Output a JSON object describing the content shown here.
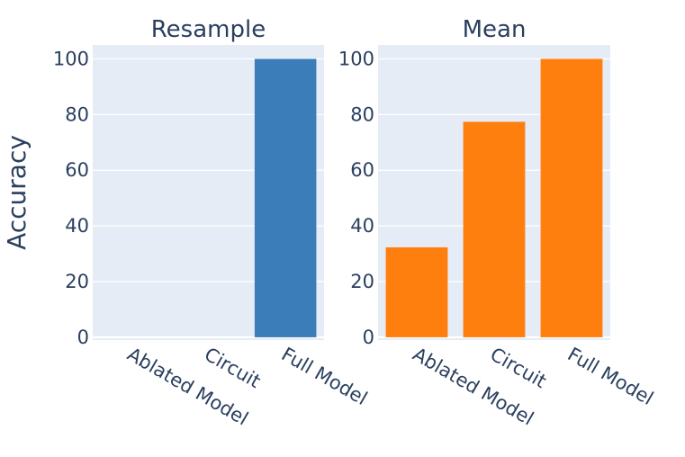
{
  "chart_data": [
    {
      "type": "bar",
      "title": "Resample",
      "categories": [
        "Ablated Model",
        "Circuit",
        "Full Model"
      ],
      "values": [
        0,
        0,
        100
      ],
      "ylabel": "Accuracy",
      "ylim": [
        -1,
        105
      ],
      "yticks": [
        0,
        20,
        40,
        60,
        80,
        100
      ],
      "color": "#3a7db8",
      "grid": true
    },
    {
      "type": "bar",
      "title": "Mean",
      "categories": [
        "Ablated Model",
        "Circuit",
        "Full Model"
      ],
      "values": [
        32.3,
        77.4,
        100
      ],
      "ylabel": "",
      "ylim": [
        -1,
        105
      ],
      "yticks": [
        0,
        20,
        40,
        60,
        80,
        100
      ],
      "color": "#ff7f0e",
      "grid": true
    }
  ],
  "shared_ylabel": "Accuracy"
}
